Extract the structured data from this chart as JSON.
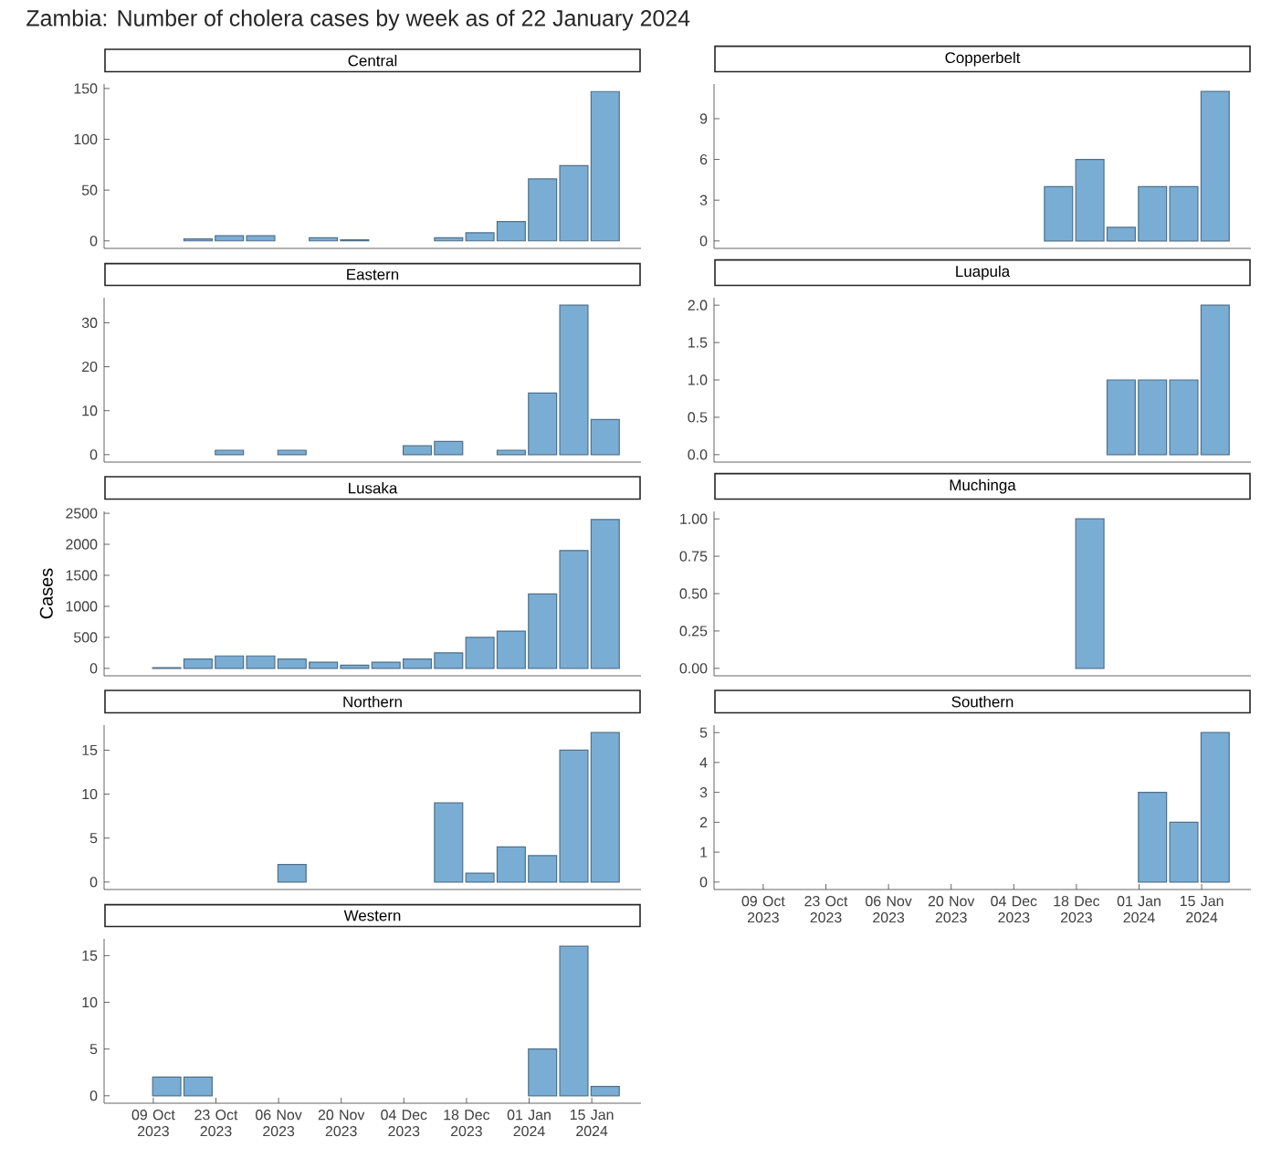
{
  "chart_data": [
    {
      "type": "bar",
      "title": "Central",
      "xlim": [
        "2023-09-28",
        "2024-01-26"
      ],
      "annotations": [
        "Zambia: Number of cholera cases by week as of 22 January 2024"
      ],
      "x": [
        "2023-10-19",
        "2023-10-26",
        "2023-11-02",
        "2023-11-16",
        "2023-11-23",
        "2023-12-14",
        "2023-12-21",
        "2023-12-28",
        "2024-01-04",
        "2024-01-11",
        "2024-01-18"
      ],
      "values": [
        2,
        5,
        5,
        3,
        1,
        3,
        8,
        19,
        61,
        74,
        147
      ],
      "color": "#7aadd4",
      "ylim": [
        -7.4,
        154.4
      ],
      "yticks": [
        0,
        50,
        100,
        150
      ],
      "tick_labels": "y"
    },
    {
      "type": "bar",
      "title": "Copperbelt",
      "xlim": [
        "2023-09-28",
        "2024-01-26"
      ],
      "x": [
        "2023-12-14",
        "2023-12-21",
        "2023-12-28",
        "2024-01-04",
        "2024-01-11",
        "2024-01-18"
      ],
      "values": [
        4,
        6,
        1,
        4,
        4,
        11
      ],
      "color": "#7aadd4",
      "ylim": [
        -0.55,
        11.55
      ],
      "yticks": [
        0,
        3,
        6,
        9
      ],
      "tick_labels": "y"
    },
    {
      "type": "bar",
      "title": "Eastern",
      "xlim": [
        "2023-09-28",
        "2024-01-26"
      ],
      "x": [
        "2023-10-26",
        "2023-11-09",
        "2023-12-07",
        "2023-12-14",
        "2023-12-28",
        "2024-01-04",
        "2024-01-11",
        "2024-01-18"
      ],
      "values": [
        1,
        1,
        2,
        3,
        1,
        14,
        34,
        8
      ],
      "color": "#7aadd4",
      "ylim": [
        -1.7,
        35.7
      ],
      "yticks": [
        0,
        10,
        20,
        30
      ],
      "tick_labels": "y"
    },
    {
      "type": "bar",
      "title": "Luapula",
      "xlim": [
        "2023-09-28",
        "2024-01-26"
      ],
      "x": [
        "2023-12-28",
        "2024-01-04",
        "2024-01-11",
        "2024-01-18"
      ],
      "values": [
        1,
        1,
        1,
        2
      ],
      "color": "#7aadd4",
      "ylim": [
        -0.1,
        2.1
      ],
      "yticks": [
        {
          "value": 0,
          "label": "0.0"
        },
        {
          "value": 0.5,
          "label": "0.5"
        },
        {
          "value": 1,
          "label": "1.0"
        },
        {
          "value": 1.5,
          "label": "1.5"
        },
        {
          "value": 2,
          "label": "2.0"
        }
      ],
      "tick_labels": "y"
    },
    {
      "type": "bar",
      "title": "Lusaka",
      "xlim": [
        "2023-09-28",
        "2024-01-26"
      ],
      "ylabel": "Cases",
      "x": [
        "2023-10-12",
        "2023-10-19",
        "2023-10-26",
        "2023-11-02",
        "2023-11-09",
        "2023-11-16",
        "2023-11-23",
        "2023-11-30",
        "2023-12-07",
        "2023-12-14",
        "2023-12-21",
        "2023-12-28",
        "2024-01-04",
        "2024-01-11",
        "2024-01-18"
      ],
      "values": [
        10,
        150,
        200,
        200,
        150,
        100,
        50,
        100,
        150,
        250,
        500,
        600,
        1200,
        1900,
        2400
      ],
      "color": "#7aadd4",
      "ylim": [
        -120,
        2530
      ],
      "yticks": [
        0,
        500,
        1000,
        1500,
        2000,
        2500
      ],
      "tick_labels": "y"
    },
    {
      "type": "bar",
      "title": "Muchinga",
      "xlim": [
        "2023-09-28",
        "2024-01-26"
      ],
      "x": [
        "2023-12-21"
      ],
      "values": [
        1
      ],
      "color": "#7aadd4",
      "ylim": [
        -0.05,
        1.05
      ],
      "yticks": [
        {
          "value": 0,
          "label": "0.00"
        },
        {
          "value": 0.25,
          "label": "0.25"
        },
        {
          "value": 0.5,
          "label": "0.50"
        },
        {
          "value": 0.75,
          "label": "0.75"
        },
        {
          "value": 1,
          "label": "1.00"
        }
      ],
      "tick_labels": "y"
    },
    {
      "type": "bar",
      "title": "Northern",
      "xlim": [
        "2023-09-28",
        "2024-01-26"
      ],
      "x": [
        "2023-11-09",
        "2023-12-14",
        "2023-12-21",
        "2023-12-28",
        "2024-01-04",
        "2024-01-11",
        "2024-01-18"
      ],
      "values": [
        2,
        9,
        1,
        4,
        3,
        15,
        17
      ],
      "color": "#7aadd4",
      "ylim": [
        -0.85,
        17.85
      ],
      "yticks": [
        0,
        5,
        10,
        15
      ],
      "tick_labels": "y"
    },
    {
      "type": "bar",
      "title": "Southern",
      "x": [
        "2024-01-04",
        "2024-01-11",
        "2024-01-18"
      ],
      "values": [
        3,
        2,
        5
      ],
      "color": "#7aadd4",
      "xlim": [
        "2023-09-28",
        "2024-01-26"
      ],
      "ylim": [
        -0.25,
        5.25
      ],
      "yticks": [
        0,
        1,
        2,
        3,
        4,
        5
      ],
      "xticks": [
        {
          "value": "2023-10-09",
          "label": "09 Oct 2023"
        },
        {
          "value": "2023-10-23",
          "label": "23 Oct 2023"
        },
        {
          "value": "2023-11-06",
          "label": "06 Nov 2023"
        },
        {
          "value": "2023-11-20",
          "label": "20 Nov 2023"
        },
        {
          "value": "2023-12-04",
          "label": "04 Dec 2023"
        },
        {
          "value": "2023-12-18",
          "label": "18 Dec 2023"
        },
        {
          "value": "2024-01-01",
          "label": "01 Jan 2024"
        },
        {
          "value": "2024-01-15",
          "label": "15 Jan 2024"
        }
      ]
    },
    {
      "type": "bar",
      "title": "Western",
      "x": [
        "2023-10-12",
        "2023-10-19",
        "2024-01-04",
        "2024-01-11",
        "2024-01-18"
      ],
      "values": [
        2,
        2,
        5,
        16,
        1
      ],
      "color": "#7aadd4",
      "xlim": [
        "2023-09-28",
        "2024-01-26"
      ],
      "ylim": [
        -0.8,
        16.8
      ],
      "yticks": [
        0,
        5,
        10,
        15
      ],
      "xticks": [
        {
          "value": "2023-10-09",
          "label": "09 Oct 2023"
        },
        {
          "value": "2023-10-23",
          "label": "23 Oct 2023"
        },
        {
          "value": "2023-11-06",
          "label": "06 Nov 2023"
        },
        {
          "value": "2023-11-20",
          "label": "20 Nov 2023"
        },
        {
          "value": "2023-12-04",
          "label": "04 Dec 2023"
        },
        {
          "value": "2023-12-18",
          "label": "18 Dec 2023"
        },
        {
          "value": "2024-01-01",
          "label": "01 Jan 2024"
        },
        {
          "value": "2024-01-15",
          "label": "15 Jan 2024"
        }
      ]
    }
  ]
}
